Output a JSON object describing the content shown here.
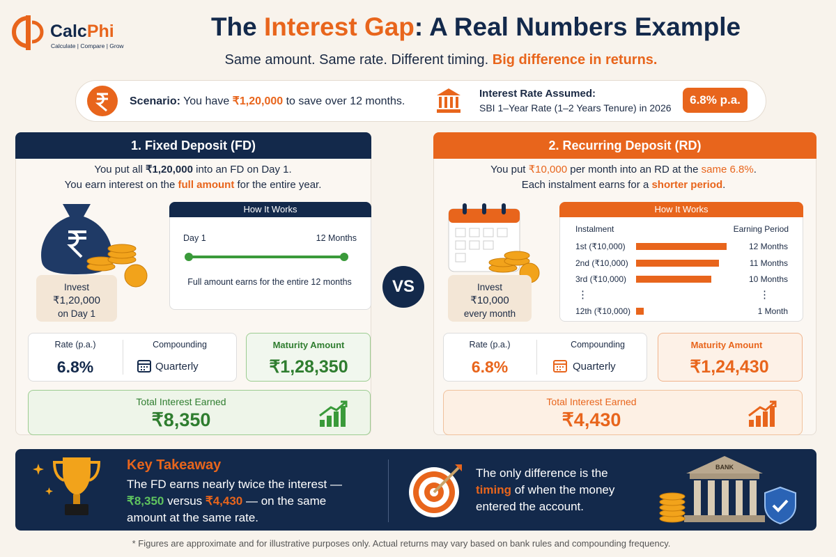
{
  "header": {
    "logo": {
      "part1": "Calc",
      "part2": "Phi",
      "tagline": "Calculate | Compare | Grow"
    },
    "title": [
      "The ",
      "Interest Gap",
      ": A Real Numbers Example"
    ],
    "subtitle": [
      "Same amount. Same rate. Different timing. ",
      "Big difference in returns."
    ]
  },
  "scenario": {
    "label": "Scenario:",
    "text": [
      " You have ",
      "₹1,20,000",
      " to save over 12 months."
    ],
    "rate_title": "Interest Rate Assumed:",
    "rate_source": "SBI 1–Year Rate (1–2 Years Tenure) in 2026",
    "rate_badge": "6.8% p.a."
  },
  "fd": {
    "heading": "1. Fixed Deposit (FD)",
    "intro": [
      [
        "You put all ",
        "₹1,20,000",
        " into an FD on Day 1."
      ],
      [
        "You earn interest on the ",
        "full amount",
        " for the entire year."
      ]
    ],
    "invest": [
      "Invest",
      "₹1,20,000",
      "on Day 1"
    ],
    "how": {
      "title": "How It Works",
      "start": "Day 1",
      "end": "12 Months",
      "note": "Full amount earns for the entire 12 months"
    },
    "rate_label": "Rate (p.a.)",
    "rate": "6.8%",
    "compounding_label": "Compounding",
    "compounding": "Quarterly",
    "maturity_label": "Maturity Amount",
    "maturity": "₹1,28,350",
    "interest_label": "Total Interest Earned",
    "interest": "₹8,350"
  },
  "vs": "VS",
  "rd": {
    "heading": "2. Recurring Deposit (RD)",
    "intro": [
      [
        "You put ",
        "₹10,000",
        " per month into an RD at the ",
        "same 6.8%",
        "."
      ],
      [
        "Each instalment earns for a ",
        "shorter period",
        "."
      ]
    ],
    "invest": [
      "Invest",
      "₹10,000",
      "every month"
    ],
    "how": {
      "title": "How It Works",
      "col1": "Instalment",
      "col2": "Earning Period",
      "ellipsis": "⋮",
      "rows": [
        {
          "instalment": "1st (₹10,000)",
          "period": {
            "value": 12,
            "label": "12 Months"
          }
        },
        {
          "instalment": "2nd (₹10,000)",
          "period": {
            "value": 11,
            "label": "11 Months"
          }
        },
        {
          "instalment": "3rd (₹10,000)",
          "period": {
            "value": 10,
            "label": "10 Months"
          }
        },
        {
          "instalment": "12th (₹10,000)",
          "period": {
            "value": 1,
            "label": "1 Month"
          }
        }
      ]
    },
    "rate_label": "Rate (p.a.)",
    "rate": "6.8%",
    "compounding_label": "Compounding",
    "compounding": "Quarterly",
    "maturity_label": "Maturity Amount",
    "maturity": "₹1,24,430",
    "interest_label": "Total Interest Earned",
    "interest": "₹4,430"
  },
  "takeaway": {
    "title": "Key Takeaway",
    "text": [
      "The FD earns nearly twice the interest — ",
      "₹8,350",
      " versus ",
      "₹4,430",
      " — on the same amount at the same rate."
    ],
    "right": [
      "The only difference is the ",
      "timing",
      " of when the money entered the account."
    ],
    "bank_sign": "BANK"
  },
  "footnote": "* Figures are approximate and for illustrative purposes only. Actual returns may vary based on bank rules and compounding frequency."
}
